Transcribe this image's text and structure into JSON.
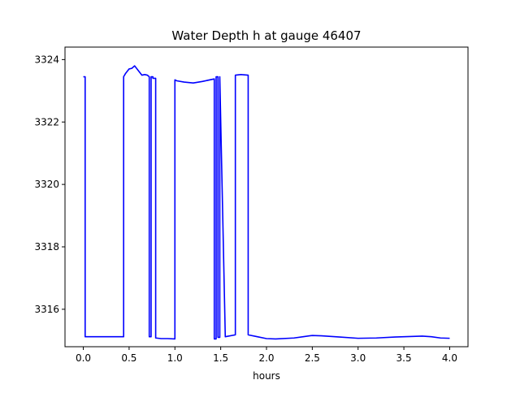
{
  "chart_data": {
    "type": "line",
    "title": "Water Depth h at gauge 46407",
    "xlabel": "hours",
    "ylabel": "",
    "xlim": [
      -0.2,
      4.2
    ],
    "ylim": [
      3314.8,
      3324.4
    ],
    "xticks": [
      0.0,
      0.5,
      1.0,
      1.5,
      2.0,
      2.5,
      3.0,
      3.5,
      4.0
    ],
    "xtick_labels": [
      "0.0",
      "0.5",
      "1.0",
      "1.5",
      "2.0",
      "2.5",
      "3.0",
      "3.5",
      "4.0"
    ],
    "yticks": [
      3316,
      3318,
      3320,
      3322,
      3324
    ],
    "ytick_labels": [
      "3316",
      "3318",
      "3320",
      "3322",
      "3324"
    ],
    "grid": false,
    "series": [
      {
        "color": "#0000ff",
        "x": [
          0.0,
          0.02,
          0.02,
          0.44,
          0.44,
          0.46,
          0.5,
          0.53,
          0.56,
          0.6,
          0.64,
          0.67,
          0.7,
          0.72,
          0.72,
          0.74,
          0.74,
          0.76,
          0.76,
          0.79,
          0.79,
          0.85,
          0.92,
          1.0,
          1.0,
          1.02,
          1.02,
          1.1,
          1.2,
          1.3,
          1.43,
          1.43,
          1.45,
          1.45,
          1.47,
          1.47,
          1.49,
          1.49,
          1.55,
          1.66,
          1.66,
          1.72,
          1.8,
          1.8,
          1.9,
          2.0,
          2.1,
          2.3,
          2.4,
          2.5,
          2.6,
          2.8,
          3.0,
          3.2,
          3.4,
          3.6,
          3.7,
          3.8,
          3.9,
          4.0
        ],
        "y": [
          3323.45,
          3323.45,
          3315.12,
          3315.12,
          3323.45,
          3323.55,
          3323.7,
          3323.72,
          3323.8,
          3323.65,
          3323.5,
          3323.52,
          3323.5,
          3323.45,
          3315.12,
          3315.12,
          3323.45,
          3323.45,
          3323.4,
          3323.4,
          3315.08,
          3315.06,
          3315.06,
          3315.05,
          3323.35,
          3323.32,
          3323.32,
          3323.28,
          3323.25,
          3323.3,
          3323.38,
          3315.05,
          3315.05,
          3323.45,
          3323.45,
          3315.1,
          3315.1,
          3323.45,
          3315.12,
          3315.18,
          3323.5,
          3323.52,
          3323.5,
          3315.18,
          3315.12,
          3315.06,
          3315.05,
          3315.08,
          3315.12,
          3315.16,
          3315.15,
          3315.11,
          3315.07,
          3315.08,
          3315.11,
          3315.13,
          3315.14,
          3315.12,
          3315.08,
          3315.07
        ]
      }
    ]
  }
}
